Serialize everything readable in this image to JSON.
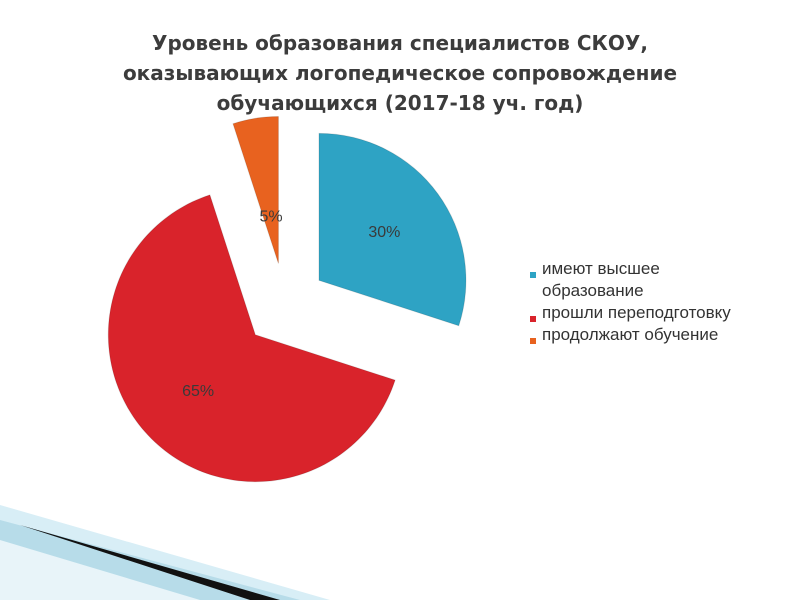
{
  "chart_data": {
    "type": "pie",
    "title": "Уровень образования специалистов СКОУ,\nоказывающих логопедическое сопровождение\nобучающихся (2017-18 уч. год)",
    "categories": [
      "имеют высшее образование",
      "прошли переподготовку",
      "продолжают обучение"
    ],
    "values": [
      30,
      65,
      5
    ],
    "value_labels": [
      "30%",
      "65%",
      "5%"
    ],
    "colors": [
      "#2ea3c4",
      "#d9232b",
      "#e8621f"
    ],
    "legend": "right"
  }
}
